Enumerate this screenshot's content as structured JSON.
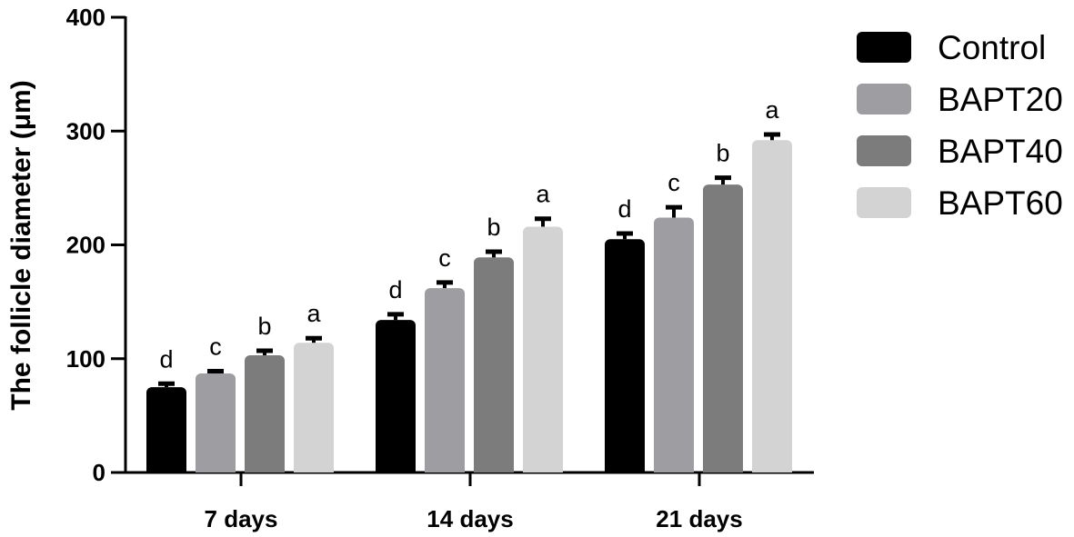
{
  "chart_data": {
    "type": "bar",
    "title": "",
    "xlabel": "",
    "ylabel": "The follicle diameter (μm)",
    "ylim": [
      0,
      400
    ],
    "yticks": [
      0,
      100,
      200,
      300,
      400
    ],
    "categories": [
      "7 days",
      "14 days",
      "21 days"
    ],
    "legend_position": "top-right",
    "grid": false,
    "series": [
      {
        "name": "Control",
        "color": "#000000",
        "values": [
          75,
          134,
          205
        ],
        "errors": [
          3,
          5,
          5
        ],
        "letters": [
          "d",
          "d",
          "d"
        ]
      },
      {
        "name": "BAPT20",
        "color": "#9e9ea2",
        "values": [
          87,
          162,
          224
        ],
        "errors": [
          2,
          5,
          9
        ],
        "letters": [
          "c",
          "c",
          "c"
        ]
      },
      {
        "name": "BAPT40",
        "color": "#7c7c7c",
        "values": [
          103,
          189,
          253
        ],
        "errors": [
          4,
          5,
          6
        ],
        "letters": [
          "b",
          "b",
          "b"
        ]
      },
      {
        "name": "BAPT60",
        "color": "#d3d3d3",
        "values": [
          114,
          216,
          292
        ],
        "errors": [
          4,
          7,
          5
        ],
        "letters": [
          "a",
          "a",
          "a"
        ]
      }
    ]
  }
}
